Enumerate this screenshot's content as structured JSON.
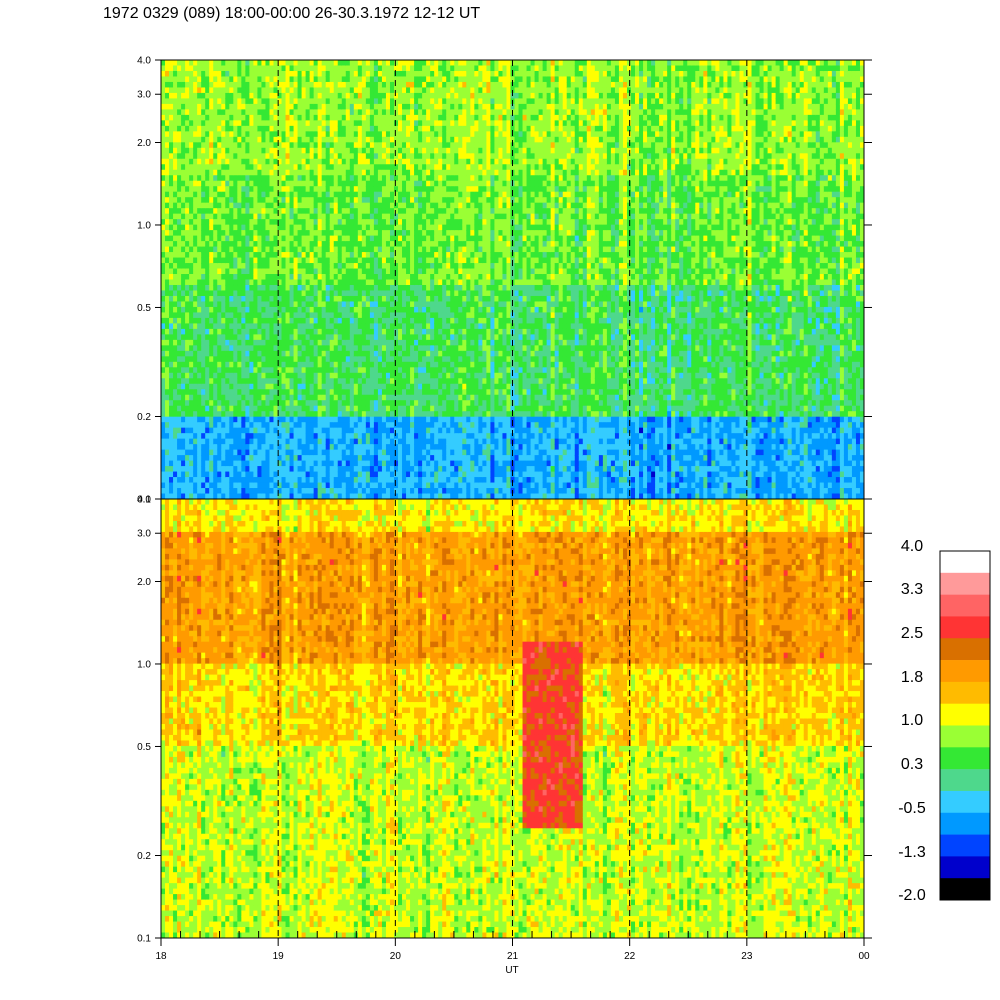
{
  "title": "1972 0329 (089) 18:00-00:00 26-30.3.1972  12-12 UT",
  "chart_data": {
    "type": "heatmap",
    "title": "1972 0329 (089) 18:00-00:00 26-30.3.1972  12-12 UT",
    "xlabel": "UT",
    "x_ticks": [
      "18",
      "19",
      "20",
      "21",
      "22",
      "23",
      "00"
    ],
    "x_range": [
      18,
      24
    ],
    "y_scale": "log",
    "y_range": [
      0.1,
      4.0
    ],
    "y_ticks": [
      "0.1",
      "0.2",
      "0.5",
      "1.0",
      "2.0",
      "3.0",
      "4.0"
    ],
    "y_tick_values": [
      0.1,
      0.2,
      0.5,
      1.0,
      2.0,
      3.0,
      4.0
    ],
    "dashed_lines_at": [
      19,
      20,
      21,
      22,
      23
    ],
    "panels": [
      {
        "name": "upper-panel",
        "dominant_level_by_band": [
          {
            "y_from": 0.1,
            "y_to": 0.2,
            "level": -0.5
          },
          {
            "y_from": 0.2,
            "y_to": 0.6,
            "level": 0.3
          },
          {
            "y_from": 0.6,
            "y_to": 1.5,
            "level": 0.6
          },
          {
            "y_from": 1.5,
            "y_to": 4.0,
            "level": 0.8
          }
        ]
      },
      {
        "name": "lower-panel",
        "dominant_level_by_band": [
          {
            "y_from": 0.1,
            "y_to": 0.5,
            "level": 1.0
          },
          {
            "y_from": 0.5,
            "y_to": 1.0,
            "level": 1.4
          },
          {
            "y_from": 1.0,
            "y_to": 3.0,
            "level": 1.9
          },
          {
            "y_from": 3.0,
            "y_to": 4.0,
            "level": 1.3
          }
        ],
        "enhancement": {
          "x_from": 21.1,
          "x_to": 21.6,
          "y_from": 0.25,
          "y_to": 1.2,
          "level": 2.6
        }
      }
    ],
    "colorbar": {
      "labels": [
        "4.0",
        "3.3",
        "2.5",
        "1.8",
        "1.0",
        "0.3",
        "-0.5",
        "-1.3",
        "-2.0"
      ],
      "label_values": [
        4.0,
        3.3,
        2.5,
        1.8,
        1.0,
        0.3,
        -0.5,
        -1.3,
        -2.0
      ],
      "range": [
        -2.0,
        4.0
      ],
      "colors_top_to_bottom": [
        "#ffffff",
        "#ff9a9a",
        "#ff6464",
        "#ff3434",
        "#d97000",
        "#ff9a00",
        "#ffbb00",
        "#ffff00",
        "#9aff34",
        "#34e834",
        "#4ed88c",
        "#34ccff",
        "#0099ff",
        "#0044ff",
        "#0000cc",
        "#000000"
      ]
    }
  }
}
